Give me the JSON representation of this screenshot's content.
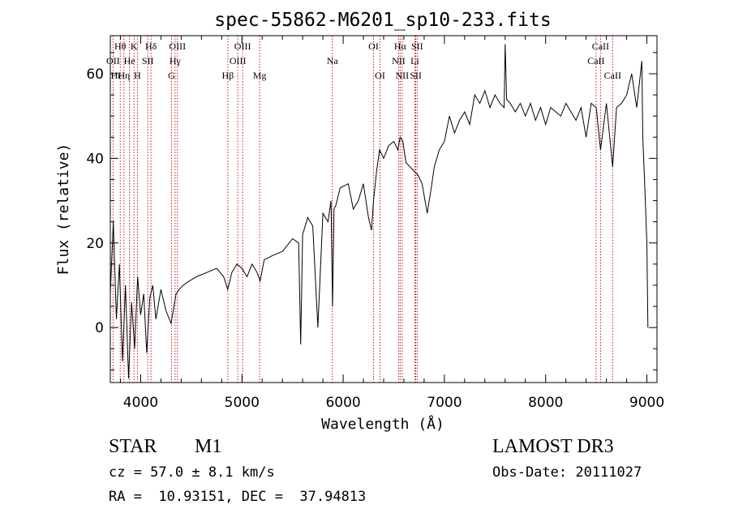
{
  "chart_data": {
    "type": "line",
    "title": "spec-55862-M6201_sp10-233.fits",
    "xlabel": "Wavelength (Å)",
    "ylabel": "Flux (relative)",
    "xlim": [
      3700,
      9100
    ],
    "ylim": [
      -13,
      69
    ],
    "x_ticks": [
      4000,
      5000,
      6000,
      7000,
      8000,
      9000
    ],
    "y_ticks": [
      0,
      20,
      40,
      60
    ],
    "x_ticklabels": [
      "4000",
      "5000",
      "6000",
      "7000",
      "8000",
      "9000"
    ],
    "y_ticklabels": [
      "0",
      "20",
      "40",
      "60"
    ],
    "grid": false,
    "series": [
      {
        "name": "spectrum",
        "x": [
          3700,
          3730,
          3760,
          3790,
          3820,
          3850,
          3880,
          3910,
          3940,
          3970,
          4000,
          4030,
          4060,
          4090,
          4120,
          4150,
          4200,
          4250,
          4300,
          4350,
          4380,
          4420,
          4480,
          4550,
          4650,
          4750,
          4820,
          4860,
          4900,
          4950,
          5000,
          5050,
          5100,
          5150,
          5180,
          5220,
          5300,
          5400,
          5500,
          5560,
          5580,
          5600,
          5650,
          5700,
          5750,
          5800,
          5850,
          5880,
          5895,
          5910,
          5930,
          5970,
          6050,
          6100,
          6150,
          6200,
          6250,
          6280,
          6300,
          6330,
          6360,
          6400,
          6450,
          6500,
          6540,
          6563,
          6590,
          6620,
          6660,
          6700,
          6740,
          6780,
          6830,
          6870,
          6900,
          6950,
          7000,
          7050,
          7100,
          7150,
          7200,
          7250,
          7300,
          7350,
          7400,
          7450,
          7500,
          7550,
          7590,
          7600,
          7615,
          7650,
          7700,
          7750,
          7800,
          7850,
          7900,
          7950,
          8000,
          8050,
          8100,
          8150,
          8200,
          8250,
          8300,
          8350,
          8400,
          8450,
          8500,
          8542,
          8600,
          8662,
          8700,
          8750,
          8800,
          8850,
          8900,
          8950,
          8960,
          8980,
          9000,
          9010
        ],
        "values": [
          8,
          25,
          2,
          15,
          -8,
          10,
          -12,
          6,
          -5,
          12,
          3,
          8,
          -6,
          7,
          10,
          2,
          9,
          4,
          1,
          8,
          9,
          10,
          11,
          12,
          13,
          14,
          12,
          9,
          13,
          15,
          14,
          12,
          15,
          13,
          11,
          16,
          17,
          18,
          21,
          20,
          -4,
          22,
          26,
          24,
          0,
          27,
          25,
          30,
          5,
          28,
          29,
          33,
          34,
          28,
          30,
          34,
          26,
          23,
          30,
          37,
          42,
          40,
          43,
          44,
          42,
          45,
          44,
          39,
          38,
          37,
          36,
          34,
          27,
          33,
          38,
          42,
          44,
          50,
          46,
          49,
          51,
          48,
          55,
          53,
          56,
          52,
          55,
          53,
          52,
          67,
          54,
          53,
          51,
          53,
          50,
          53,
          49,
          52,
          48,
          52,
          51,
          50,
          53,
          51,
          49,
          52,
          45,
          53,
          52,
          42,
          53,
          38,
          52,
          53,
          55,
          60,
          52,
          63,
          45,
          33,
          20,
          0
        ]
      }
    ],
    "annotations": {
      "label": "spectral line markers",
      "lines": [
        {
          "name": "Hθ",
          "wavelength": 3798
        },
        {
          "name": "OII",
          "wavelength": 3727
        },
        {
          "name": "Hη",
          "wavelength": 3835
        },
        {
          "name": "He",
          "wavelength": 3889
        },
        {
          "name": "K",
          "wavelength": 3934
        },
        {
          "name": "H",
          "wavelength": 3968
        },
        {
          "name": "SII",
          "wavelength": 4070
        },
        {
          "name": "Hδ",
          "wavelength": 4102
        },
        {
          "name": "OIII",
          "wavelength": 4363
        },
        {
          "name": "Hγ",
          "wavelength": 4340
        },
        {
          "name": "G",
          "wavelength": 4305
        },
        {
          "name": "Hβ",
          "wavelength": 4861
        },
        {
          "name": "OIII",
          "wavelength": 4959
        },
        {
          "name": "OIII",
          "wavelength": 5007
        },
        {
          "name": "Mg",
          "wavelength": 5175
        },
        {
          "name": "Na",
          "wavelength": 5893
        },
        {
          "name": "OI",
          "wavelength": 6300
        },
        {
          "name": "OI",
          "wavelength": 6364
        },
        {
          "name": "Hα",
          "wavelength": 6563
        },
        {
          "name": "NII",
          "wavelength": 6548
        },
        {
          "name": "NII",
          "wavelength": 6583
        },
        {
          "name": "SII",
          "wavelength": 6717
        },
        {
          "name": "Li",
          "wavelength": 6708
        },
        {
          "name": "SII",
          "wavelength": 6731
        },
        {
          "name": "CaII",
          "wavelength": 8498
        },
        {
          "name": "CaII",
          "wavelength": 8542
        },
        {
          "name": "CaII",
          "wavelength": 8662
        }
      ],
      "label_rows": [
        [
          {
            "text": "Hθ",
            "w": 3798
          },
          {
            "text": "K",
            "w": 3934
          },
          {
            "text": "Hδ",
            "w": 4102
          },
          {
            "text": "OIII",
            "w": 4363
          },
          {
            "text": "OIII",
            "w": 5007
          },
          {
            "text": "OI",
            "w": 6300
          },
          {
            "text": "Hα",
            "w": 6563
          },
          {
            "text": "SII",
            "w": 6731
          },
          {
            "text": "CaII",
            "w": 8542
          }
        ],
        [
          {
            "text": "OII",
            "w": 3727
          },
          {
            "text": "He",
            "w": 3889
          },
          {
            "text": "SII",
            "w": 4070
          },
          {
            "text": "Hγ",
            "w": 4340
          },
          {
            "text": "OIII",
            "w": 4959
          },
          {
            "text": "Na",
            "w": 5893
          },
          {
            "text": "NII",
            "w": 6548
          },
          {
            "text": "Li",
            "w": 6708
          },
          {
            "text": "CaII",
            "w": 8498
          }
        ],
        [
          {
            "text": "Hε",
            "w": 3760
          },
          {
            "text": "Hη",
            "w": 3835
          },
          {
            "text": "H",
            "w": 3968
          },
          {
            "text": "G",
            "w": 4305
          },
          {
            "text": "Hβ",
            "w": 4861
          },
          {
            "text": "Mg",
            "w": 5175
          },
          {
            "text": "OI",
            "w": 6364
          },
          {
            "text": "NII",
            "w": 6583
          },
          {
            "text": "SII",
            "w": 6717
          },
          {
            "text": "CaII",
            "w": 8662
          }
        ]
      ]
    }
  },
  "info": {
    "object_class": "STAR",
    "object_type": "M1",
    "survey": "LAMOST DR3",
    "cz": "cz = 57.0 ± 8.1 km/s",
    "obs_date": "Obs-Date: 20111027",
    "radec": "RA =  10.93151, DEC =  37.94813"
  },
  "colors": {
    "line": "#000000",
    "marker": "#c00000",
    "background": "#ffffff"
  }
}
